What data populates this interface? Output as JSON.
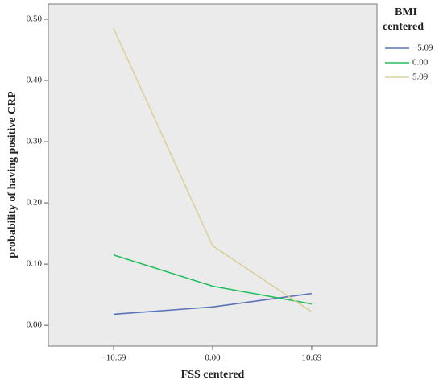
{
  "chart_data": {
    "type": "line",
    "x_label": "FSS centered",
    "y_label": "probability of having positive CRP",
    "legend_title": "BMI centered",
    "x": [
      {
        "value": -10.69,
        "label": "−10.69"
      },
      {
        "value": 0,
        "label": "0.00"
      },
      10.69
    ],
    "series": [
      {
        "name": "−5.09",
        "color": "#5b72b8",
        "values": [
          0.018,
          0.03,
          0.052
        ]
      },
      {
        "name": "0.00",
        "color": "#22bf5c",
        "values": [
          0.115,
          0.064,
          0.035
        ]
      },
      {
        "name": "5.09",
        "color": "#ddd09a",
        "values": [
          0.485,
          0.13,
          0.022
        ]
      }
    ],
    "xlim": [
      -17.74,
      17.74
    ],
    "ylim": [
      -0.034,
      0.525
    ],
    "yticks": [
      {
        "value": 0,
        "label": "0.00"
      },
      {
        "value": 0.1,
        "label": "0.10"
      },
      {
        "value": 0.2,
        "label": "0.20"
      },
      {
        "value": 0.3,
        "label": "0.30"
      },
      {
        "value": 0.4,
        "label": "0.40"
      },
      {
        "value": 0.5,
        "label": "0.50"
      }
    ],
    "legend_position": "right"
  }
}
